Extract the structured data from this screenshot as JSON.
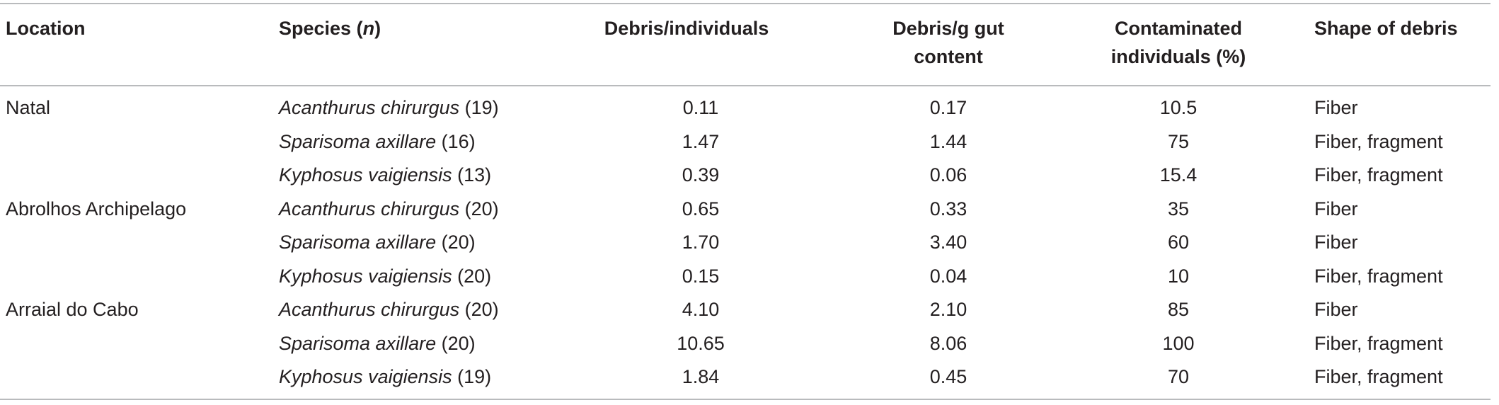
{
  "headers": {
    "location": "Location",
    "species_prefix": "Species (",
    "species_n": "n",
    "species_suffix": ")",
    "debris_individuals": "Debris/individuals",
    "debris_gut_line1": "Debris/g gut",
    "debris_gut_line2": "content",
    "contaminated_line1": "Contaminated",
    "contaminated_line2": "individuals (%)",
    "shape": "Shape of debris"
  },
  "rows": [
    {
      "location": "Natal",
      "species": "Acanthurus chirurgus",
      "n": "(19)",
      "debris_ind": "0.11",
      "debris_gut": "0.17",
      "contaminated": "10.5",
      "shape": "Fiber"
    },
    {
      "location": "",
      "species": "Sparisoma axillare",
      "n": "(16)",
      "debris_ind": "1.47",
      "debris_gut": "1.44",
      "contaminated": "75",
      "shape": "Fiber, fragment"
    },
    {
      "location": "",
      "species": "Kyphosus vaigiensis",
      "n": "(13)",
      "debris_ind": "0.39",
      "debris_gut": "0.06",
      "contaminated": "15.4",
      "shape": "Fiber, fragment"
    },
    {
      "location": "Abrolhos Archipelago",
      "species": "Acanthurus chirurgus",
      "n": "(20)",
      "debris_ind": "0.65",
      "debris_gut": "0.33",
      "contaminated": "35",
      "shape": "Fiber"
    },
    {
      "location": "",
      "species": "Sparisoma axillare",
      "n": "(20)",
      "debris_ind": "1.70",
      "debris_gut": "3.40",
      "contaminated": "60",
      "shape": "Fiber"
    },
    {
      "location": "",
      "species": "Kyphosus vaigiensis",
      "n": "(20)",
      "debris_ind": "0.15",
      "debris_gut": "0.04",
      "contaminated": "10",
      "shape": "Fiber, fragment"
    },
    {
      "location": "Arraial do Cabo",
      "species": "Acanthurus chirurgus",
      "n": "(20)",
      "debris_ind": "4.10",
      "debris_gut": "2.10",
      "contaminated": "85",
      "shape": "Fiber"
    },
    {
      "location": "",
      "species": "Sparisoma axillare",
      "n": "(20)",
      "debris_ind": "10.65",
      "debris_gut": "8.06",
      "contaminated": "100",
      "shape": "Fiber, fragment"
    },
    {
      "location": "",
      "species": "Kyphosus vaigiensis",
      "n": "(19)",
      "debris_ind": "1.84",
      "debris_gut": "0.45",
      "contaminated": "70",
      "shape": "Fiber, fragment"
    }
  ]
}
